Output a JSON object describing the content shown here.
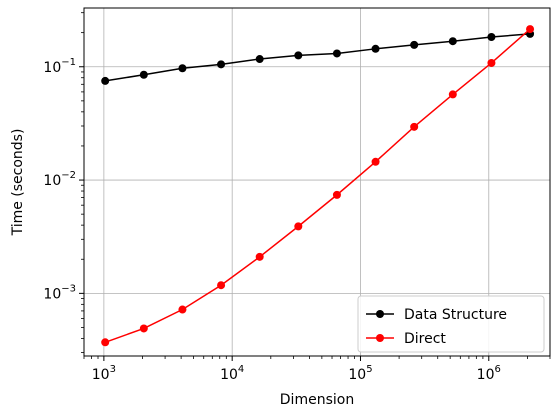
{
  "chart_data": {
    "type": "line",
    "title": "",
    "xlabel": "Dimension",
    "ylabel": "Time (seconds)",
    "x_scale": "log",
    "y_scale": "log",
    "xlim": [
      700,
      3000000
    ],
    "ylim": [
      0.00028,
      0.33
    ],
    "grid": true,
    "legend_position": "lower-right",
    "x_ticks": [
      {
        "value": 1000,
        "base": "10",
        "exp": "3"
      },
      {
        "value": 10000,
        "base": "10",
        "exp": "4"
      },
      {
        "value": 100000,
        "base": "10",
        "exp": "5"
      },
      {
        "value": 1000000,
        "base": "10",
        "exp": "6"
      }
    ],
    "y_ticks": [
      {
        "value": 0.001,
        "base": "10",
        "exp": "−3"
      },
      {
        "value": 0.01,
        "base": "10",
        "exp": "−2"
      },
      {
        "value": 0.1,
        "base": "10",
        "exp": "−1"
      }
    ],
    "x": [
      1024,
      2048,
      4096,
      8192,
      16384,
      32768,
      65536,
      131072,
      262144,
      524288,
      1048576,
      2097152
    ],
    "series": [
      {
        "name": "Data Structure",
        "color": "#000000",
        "values": [
          0.075,
          0.085,
          0.097,
          0.105,
          0.117,
          0.126,
          0.131,
          0.144,
          0.156,
          0.168,
          0.183,
          0.195
        ]
      },
      {
        "name": "Direct",
        "color": "#ff0000",
        "values": [
          0.00037,
          0.00049,
          0.00072,
          0.00118,
          0.0021,
          0.0039,
          0.0074,
          0.0145,
          0.0295,
          0.057,
          0.108,
          0.215
        ]
      }
    ]
  }
}
